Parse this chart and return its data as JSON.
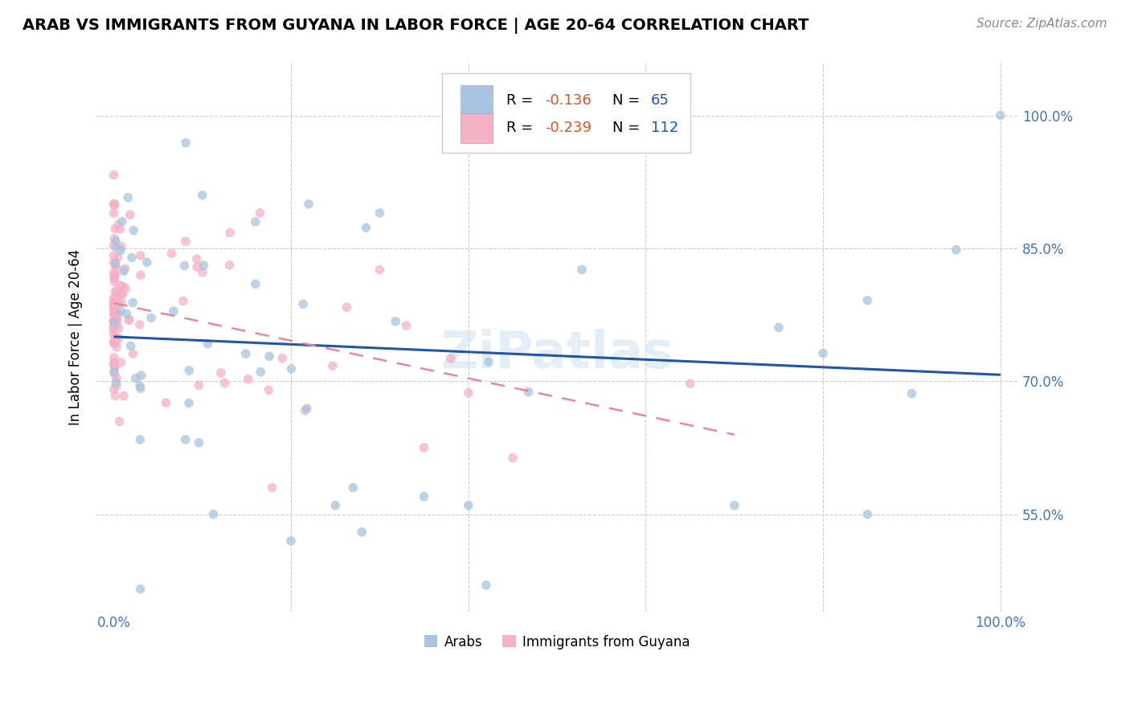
{
  "title": "ARAB VS IMMIGRANTS FROM GUYANA IN LABOR FORCE | AGE 20-64 CORRELATION CHART",
  "source": "Source: ZipAtlas.com",
  "ylabel": "In Labor Force | Age 20-64",
  "xlim": [
    -0.02,
    1.02
  ],
  "ylim": [
    0.44,
    1.06
  ],
  "yticks": [
    0.55,
    0.7,
    0.85,
    1.0
  ],
  "ytick_labels": [
    "55.0%",
    "70.0%",
    "85.0%",
    "100.0%"
  ],
  "xtick_labels": [
    "0.0%",
    "100.0%"
  ],
  "arab_color": "#a8c4e0",
  "guyana_color": "#f4b0c4",
  "arab_line_color": "#2255aa",
  "guyana_line_color": "#e8869a",
  "arab_R": -0.136,
  "arab_N": 65,
  "guyana_R": -0.239,
  "guyana_N": 112,
  "watermark": "ZiPatlas",
  "legend_R_color": "#e05020",
  "legend_N_color": "#2255aa",
  "title_fontsize": 14,
  "source_fontsize": 11,
  "tick_fontsize": 12,
  "ylabel_fontsize": 12
}
